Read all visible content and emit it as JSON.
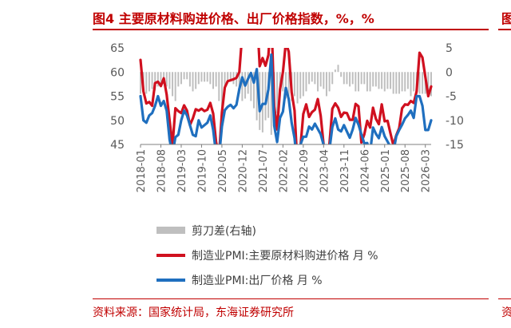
{
  "title": "图4  主要原材料购进价格、出厂价格指数，%，%",
  "right_title_fragment": "图",
  "source": "资料来源：国家统计局，东海证券研究所",
  "right_source_fragment": "资",
  "colors": {
    "accent": "#c00000",
    "input": "#d0101f",
    "output": "#1f6fbf",
    "spread": "#bfbfbf"
  },
  "chart_data": {
    "type": "line",
    "title": "图4  主要原材料购进价格、出厂价格指数，%，%",
    "x_tick_labels": [
      "2018-01",
      "2018-08",
      "2019-03",
      "2019-10",
      "2020-05",
      "2020-12",
      "2021-07",
      "2022-02",
      "2022-09",
      "2023-04",
      "2023-11",
      "2024-06",
      "2025-01",
      "2025-08",
      "2026-03"
    ],
    "left_axis": {
      "ylim": [
        45,
        65
      ],
      "ticks": [
        45,
        50,
        55,
        60,
        65
      ]
    },
    "right_axis": {
      "ylim": [
        -15,
        5
      ],
      "ticks": [
        -15,
        -10,
        -5,
        0,
        5
      ]
    },
    "x_start": "2018-01",
    "x_end": "2026-05",
    "grid": false,
    "legend_position": "bottom",
    "series": [
      {
        "name": "剪刀差(右轴)",
        "axis": "right",
        "kind": "bar",
        "values": [
          -4.5,
          -4.5,
          -4.5,
          -4.0,
          -3.5,
          -3.8,
          -3.0,
          -2.5,
          -2.5,
          -3.0,
          -3.5,
          -5.0,
          -6.0,
          -3.0,
          -2.5,
          -1.5,
          -1.5,
          -3.0,
          -4.0,
          -3.5,
          -2.5,
          -2.0,
          -2.0,
          -2.0,
          -2.5,
          -3.5,
          -3.0,
          -6.0,
          -9.5,
          -3.5,
          -2.0,
          -2.0,
          -2.5,
          -3.0,
          -4.5,
          -6.0,
          -5.5,
          -4.5,
          -6.0,
          -7.5,
          -10.0,
          -12.0,
          -12.5,
          -10.0,
          -9.5,
          -13.0,
          -11.0,
          -8.5,
          -5.0,
          -4.0,
          -5.5,
          -5.0,
          -6.0,
          -5.0,
          -6.5,
          -5.5,
          -5.0,
          -4.0,
          -2.5,
          -2.0,
          -2.5,
          -4.0,
          -3.0,
          -3.5,
          -5.0,
          -4.0,
          -2.5,
          0.5,
          1.5,
          -1.0,
          -2.5,
          -2.5,
          -3.0,
          -2.5,
          -4.0,
          -4.0,
          -2.5,
          -2.5,
          -4.0,
          -4.0,
          -3.0,
          -3.0,
          -3.5,
          -3.5,
          -4.0,
          -3.5,
          -3.5,
          -4.5,
          -4.5,
          -4.5,
          -4.0,
          -4.0,
          -3.5,
          -5.0,
          -4.0,
          -4.5,
          -4.5,
          -4.5,
          -4.5,
          -4.0,
          -5.0
        ]
      },
      {
        "name": "制造业PMI:主要原材料购进价格 月 %",
        "axis": "left",
        "kind": "line",
        "values": [
          62.5,
          56.0,
          53.5,
          53.8,
          53.0,
          57.7,
          58.0,
          57.1,
          58.7,
          55.3,
          50.0,
          44.8,
          52.5,
          51.9,
          51.5,
          53.1,
          52.0,
          49.0,
          50.4,
          52.3,
          52.0,
          52.4,
          51.9,
          52.2,
          53.6,
          51.4,
          45.5,
          42.5,
          51.6,
          56.8,
          58.1,
          58.3,
          58.5,
          58.8,
          60.0,
          68.0,
          67.1,
          66.7,
          69.4,
          66.9,
          72.8,
          61.2,
          62.9,
          61.3,
          63.5,
          72.1,
          52.9,
          48.1,
          56.4,
          60.0,
          66.1,
          64.2,
          55.8,
          52.0,
          40.4,
          44.3,
          51.3,
          53.3,
          50.7,
          51.7,
          52.2,
          54.4,
          50.9,
          44.9,
          40.8,
          45.1,
          52.4,
          53.5,
          52.6,
          50.7,
          51.6,
          51.5,
          50.1,
          50.1,
          53.4,
          52.9,
          45.4,
          47.1,
          49.9,
          48.5,
          52.6,
          50.3,
          49.2,
          53.3,
          49.8,
          49.9,
          47.3,
          44.8,
          46.9,
          48.4,
          52.5,
          53.3,
          53.2,
          54.0,
          53.6,
          56.0,
          64.0,
          63.0,
          59.0,
          55.0,
          57.0
        ]
      },
      {
        "name": "制造业PMI:出厂价格 月 %",
        "axis": "left",
        "kind": "line",
        "values": [
          55.0,
          50.0,
          49.5,
          51.0,
          51.5,
          53.0,
          55.0,
          53.0,
          54.0,
          52.0,
          46.0,
          43.0,
          46.5,
          47.0,
          50.0,
          52.0,
          51.0,
          49.0,
          47.0,
          46.7,
          50.0,
          48.5,
          49.0,
          49.5,
          51.0,
          48.0,
          43.0,
          42.2,
          48.7,
          52.1,
          52.8,
          53.2,
          52.5,
          53.2,
          56.5,
          58.9,
          57.2,
          58.6,
          59.8,
          57.8,
          60.6,
          51.9,
          53.4,
          53.4,
          56.4,
          63.6,
          48.9,
          45.5,
          50.5,
          51.8,
          56.7,
          54.4,
          49.5,
          46.3,
          40.1,
          44.9,
          46.6,
          46.6,
          48.7,
          48.1,
          49.3,
          48.2,
          47.1,
          44.9,
          41.6,
          43.9,
          48.6,
          50.4,
          48.1,
          47.7,
          49.0,
          47.7,
          46.4,
          48.1,
          50.5,
          49.1,
          47.1,
          45.2,
          45.3,
          43.3,
          48.5,
          47.2,
          46.3,
          48.6,
          46.7,
          45.6,
          44.5,
          43.4,
          46.7,
          48.0,
          49.1,
          50.4,
          51.1,
          52.0,
          50.5,
          55.0,
          55.0,
          53.0,
          48.0,
          48.0,
          50.0
        ]
      }
    ]
  }
}
